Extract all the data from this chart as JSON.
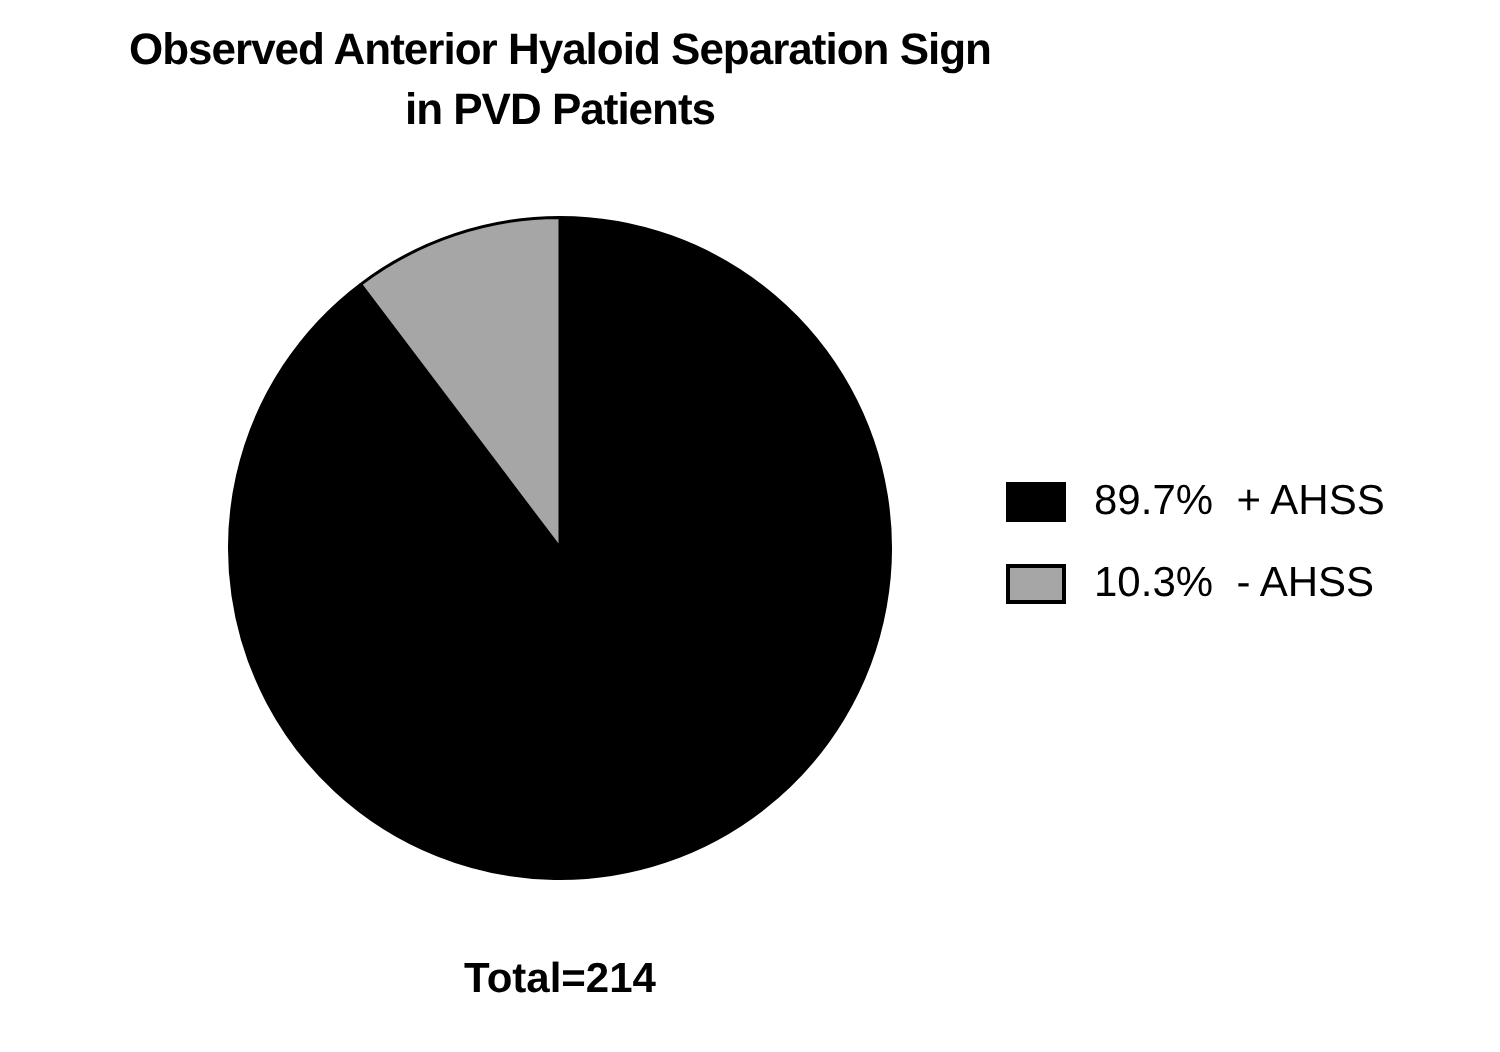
{
  "chart_data": {
    "type": "pie",
    "title": "Observed Anterior Hyaloid Separation Sign\nin PVD Patients",
    "categories": [
      "+ AHSS",
      "- AHSS"
    ],
    "values": [
      89.7,
      10.3
    ],
    "value_labels": [
      "89.7%",
      "10.3%"
    ],
    "colors": [
      "#000000",
      "#a6a6a6"
    ],
    "legend": "right",
    "annotations": [
      "Total=214"
    ]
  }
}
